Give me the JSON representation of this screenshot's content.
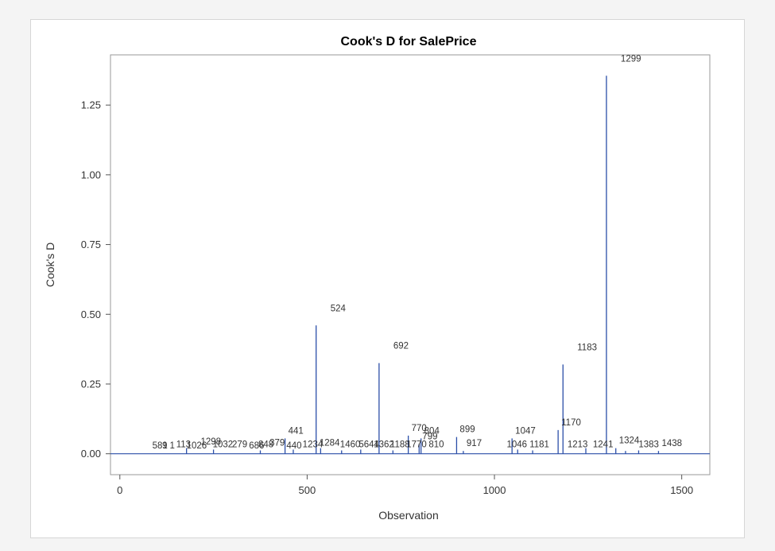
{
  "chart_data": {
    "type": "needle",
    "title": "Cook's D for SalePrice",
    "xlabel": "Observation",
    "ylabel": "Cook's D",
    "xlim": [
      -25,
      1575
    ],
    "ylim": [
      -0.075,
      1.43
    ],
    "xticks": [
      0,
      500,
      1000,
      1500
    ],
    "yticks": [
      0.0,
      0.25,
      0.5,
      0.75,
      1.0,
      1.25
    ],
    "ytick_labels": [
      "0.00",
      "0.25",
      "0.50",
      "0.75",
      "1.00",
      "1.25"
    ],
    "grid": false,
    "line_color": "#2b4fa8",
    "points": [
      {
        "x": 1299,
        "y": 1.355,
        "label": "1299"
      },
      {
        "x": 524,
        "y": 0.46,
        "label": "524"
      },
      {
        "x": 692,
        "y": 0.325,
        "label": "692"
      },
      {
        "x": 1183,
        "y": 0.32,
        "label": "1183"
      },
      {
        "x": 1170,
        "y": 0.085,
        "label": "1170"
      },
      {
        "x": 1047,
        "y": 0.055,
        "label": "1047"
      },
      {
        "x": 899,
        "y": 0.06,
        "label": "899"
      },
      {
        "x": 804,
        "y": 0.055,
        "label": "804"
      },
      {
        "x": 770,
        "y": 0.065,
        "label": "770"
      },
      {
        "x": 799,
        "y": 0.035,
        "label": "799"
      },
      {
        "x": 441,
        "y": 0.055,
        "label": "441"
      },
      {
        "x": 917,
        "y": 0.01,
        "label": "917"
      },
      {
        "x": 1324,
        "y": 0.02,
        "label": "1324"
      },
      {
        "x": 1438,
        "y": 0.01,
        "label": "1438"
      },
      {
        "x": 178,
        "y": 0.02,
        "label": ""
      },
      {
        "x": 250,
        "y": 0.015,
        "label": ""
      },
      {
        "x": 375,
        "y": 0.012,
        "label": ""
      },
      {
        "x": 463,
        "y": 0.015,
        "label": ""
      },
      {
        "x": 536,
        "y": 0.02,
        "label": ""
      },
      {
        "x": 592,
        "y": 0.012,
        "label": ""
      },
      {
        "x": 643,
        "y": 0.015,
        "label": ""
      },
      {
        "x": 729,
        "y": 0.012,
        "label": ""
      },
      {
        "x": 1062,
        "y": 0.015,
        "label": ""
      },
      {
        "x": 1102,
        "y": 0.012,
        "label": ""
      },
      {
        "x": 1244,
        "y": 0.02,
        "label": ""
      },
      {
        "x": 1350,
        "y": 0.01,
        "label": ""
      },
      {
        "x": 1385,
        "y": 0.012,
        "label": ""
      }
    ],
    "cluster_labels": [
      {
        "x": 107,
        "y": 0.03,
        "label": "581"
      },
      {
        "x": 120,
        "y": 0.03,
        "label": "9"
      },
      {
        "x": 140,
        "y": 0.03,
        "label": "1"
      },
      {
        "x": 170,
        "y": 0.035,
        "label": "113"
      },
      {
        "x": 205,
        "y": 0.03,
        "label": "1026"
      },
      {
        "x": 243,
        "y": 0.045,
        "label": "1298"
      },
      {
        "x": 275,
        "y": 0.035,
        "label": "1032"
      },
      {
        "x": 320,
        "y": 0.035,
        "label": "279"
      },
      {
        "x": 365,
        "y": 0.03,
        "label": "686"
      },
      {
        "x": 390,
        "y": 0.035,
        "label": "848"
      },
      {
        "x": 420,
        "y": 0.04,
        "label": "379"
      },
      {
        "x": 465,
        "y": 0.03,
        "label": "440"
      },
      {
        "x": 515,
        "y": 0.035,
        "label": "1234"
      },
      {
        "x": 560,
        "y": 0.04,
        "label": "1284"
      },
      {
        "x": 615,
        "y": 0.035,
        "label": "1460"
      },
      {
        "x": 665,
        "y": 0.035,
        "label": "5644"
      },
      {
        "x": 705,
        "y": 0.035,
        "label": "1362"
      },
      {
        "x": 748,
        "y": 0.035,
        "label": "1188"
      },
      {
        "x": 792,
        "y": 0.035,
        "label": "1770"
      },
      {
        "x": 845,
        "y": 0.035,
        "label": "810"
      },
      {
        "x": 1060,
        "y": 0.035,
        "label": "1046"
      },
      {
        "x": 1120,
        "y": 0.035,
        "label": "1181"
      },
      {
        "x": 1222,
        "y": 0.035,
        "label": "1213"
      },
      {
        "x": 1290,
        "y": 0.035,
        "label": "1241"
      },
      {
        "x": 1412,
        "y": 0.035,
        "label": "1383"
      }
    ]
  }
}
